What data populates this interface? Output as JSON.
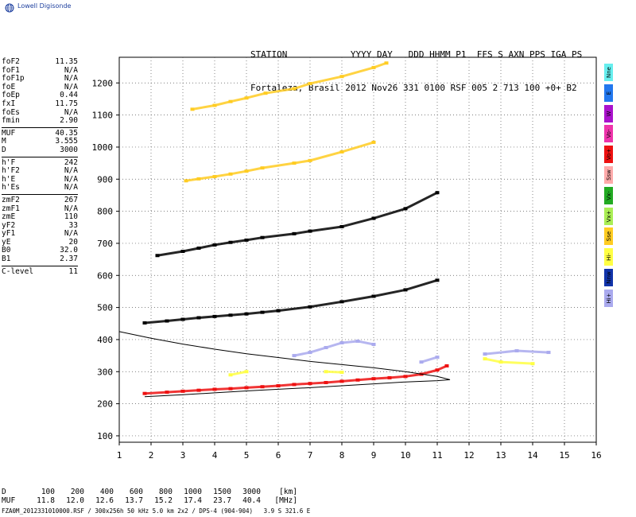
{
  "brand": "Lowell Digisonde",
  "header": {
    "line1": "STATION            YYYY DAY   DDD HHMM P1  FFS S AXN PPS IGA PS",
    "line2": "Fortaleza, Brasil 2012 Nov26 331 0100 RSF 005 2 713 100 +0+ B2"
  },
  "params": [
    [
      [
        "foF2",
        "11.35"
      ],
      [
        "foF1",
        "N/A"
      ],
      [
        "foF1p",
        "N/A"
      ],
      [
        "foE",
        "N/A"
      ],
      [
        "foEp",
        "0.44"
      ],
      [
        "fxI",
        "11.75"
      ],
      [
        "foEs",
        "N/A"
      ],
      [
        "fmin",
        "2.90"
      ]
    ],
    [
      [
        "MUF",
        "40.35"
      ],
      [
        "M",
        "3.555"
      ],
      [
        "D",
        "3000"
      ]
    ],
    [
      [
        "h'F",
        "242"
      ],
      [
        "h'F2",
        "N/A"
      ],
      [
        "h'E",
        "N/A"
      ],
      [
        "h'Es",
        "N/A"
      ]
    ],
    [
      [
        "zmF2",
        "267"
      ],
      [
        "zmF1",
        "N/A"
      ],
      [
        "zmE",
        "110"
      ],
      [
        "yF2",
        "33"
      ],
      [
        "yF1",
        "N/A"
      ],
      [
        "yE",
        "20"
      ],
      [
        "B0",
        "32.0"
      ],
      [
        "B1",
        "2.37"
      ]
    ],
    [
      [
        "C-level",
        "11"
      ]
    ]
  ],
  "legend": [
    {
      "label": "Nne",
      "color": "#66eeee"
    },
    {
      "label": "E",
      "color": "#2277ee"
    },
    {
      "label": "W",
      "color": "#aa11cc"
    },
    {
      "label": "Vo-",
      "color": "#ee33aa"
    },
    {
      "label": "Vo+",
      "color": "#ee1111"
    },
    {
      "label": "Ssw",
      "color": "#ffaaaa"
    },
    {
      "label": "Vx-",
      "color": "#22aa22"
    },
    {
      "label": "Vx+",
      "color": "#aaee55"
    },
    {
      "label": "Sse",
      "color": "#ffcc22"
    },
    {
      "label": "Hi-",
      "color": "#ffff44"
    },
    {
      "label": "Nnw",
      "color": "#1133aa"
    },
    {
      "label": "Hi+",
      "color": "#aaaaee"
    }
  ],
  "bottom_table": {
    "D_label": "D",
    "D_values": [
      "100",
      "200",
      "400",
      "600",
      "800",
      "1000",
      "1500",
      "3000"
    ],
    "D_unit": "[km]",
    "MUF_label": "MUF",
    "MUF_values": [
      "11.8",
      "12.0",
      "12.6",
      "13.7",
      "15.2",
      "17.4",
      "23.7",
      "40.4"
    ],
    "MUF_unit": "[MHz]"
  },
  "footer": "FZA0M_2012331010000.RSF / 300x256h 50 kHz 5.0 km 2x2 / DPS-4 (904-904)   3.9 S 321.6 E",
  "chart_data": {
    "type": "scatter",
    "title": "",
    "xlabel": "",
    "ylabel": "",
    "xlim": [
      1,
      16
    ],
    "ylim": [
      80,
      1280
    ],
    "x_ticks": [
      1,
      2,
      3,
      4,
      5,
      6,
      7,
      8,
      9,
      10,
      11,
      12,
      13,
      14,
      15,
      16
    ],
    "y_ticks": [
      100,
      200,
      300,
      400,
      500,
      600,
      700,
      800,
      900,
      1000,
      1100,
      1200
    ],
    "grid": true,
    "series": [
      {
        "name": "F trace 1 (o)",
        "color": "#ee1111",
        "points": [
          [
            1.8,
            232
          ],
          [
            2.5,
            236
          ],
          [
            3,
            239
          ],
          [
            3.5,
            242
          ],
          [
            4,
            245
          ],
          [
            4.5,
            247
          ],
          [
            5,
            250
          ],
          [
            5.5,
            253
          ],
          [
            6,
            256
          ],
          [
            6.5,
            260
          ],
          [
            7,
            263
          ],
          [
            7.5,
            266
          ],
          [
            8,
            270
          ],
          [
            8.5,
            274
          ],
          [
            9,
            278
          ],
          [
            9.5,
            281
          ],
          [
            10,
            285
          ],
          [
            10.5,
            292
          ],
          [
            11,
            305
          ],
          [
            11.3,
            318
          ]
        ]
      },
      {
        "name": "hop 2",
        "color": "#000000",
        "points": [
          [
            1.8,
            452
          ],
          [
            2.5,
            458
          ],
          [
            3,
            463
          ],
          [
            3.5,
            468
          ],
          [
            4,
            472
          ],
          [
            4.5,
            476
          ],
          [
            5,
            480
          ],
          [
            5.5,
            485
          ],
          [
            6,
            490
          ],
          [
            7,
            502
          ],
          [
            8,
            518
          ],
          [
            9,
            535
          ],
          [
            10,
            555
          ],
          [
            11,
            585
          ]
        ]
      },
      {
        "name": "hop 3",
        "color": "#000000",
        "points": [
          [
            2.2,
            662
          ],
          [
            3,
            675
          ],
          [
            3.5,
            685
          ],
          [
            4,
            695
          ],
          [
            4.5,
            703
          ],
          [
            5,
            710
          ],
          [
            5.5,
            718
          ],
          [
            6.5,
            730
          ],
          [
            7,
            738
          ],
          [
            8,
            752
          ],
          [
            9,
            778
          ],
          [
            10,
            808
          ],
          [
            11,
            858
          ]
        ]
      },
      {
        "name": "hop 4",
        "color": "#ffcc22",
        "points": [
          [
            3.1,
            895
          ],
          [
            3.5,
            901
          ],
          [
            4,
            908
          ],
          [
            4.5,
            916
          ],
          [
            5,
            925
          ],
          [
            5.5,
            935
          ],
          [
            6.5,
            950
          ],
          [
            7,
            958
          ],
          [
            8,
            985
          ],
          [
            9,
            1015
          ]
        ]
      },
      {
        "name": "hop 5",
        "color": "#ffcc22",
        "points": [
          [
            3.3,
            1118
          ],
          [
            4,
            1130
          ],
          [
            4.5,
            1142
          ],
          [
            5,
            1153
          ],
          [
            5.6,
            1168
          ],
          [
            6.5,
            1182
          ],
          [
            7,
            1198
          ],
          [
            8,
            1220
          ],
          [
            9,
            1248
          ],
          [
            9.4,
            1262
          ]
        ]
      },
      {
        "name": "Hi+ spread",
        "color": "#aaaaee",
        "points": [
          [
            6.5,
            350
          ],
          [
            7,
            360
          ],
          [
            7.5,
            375
          ],
          [
            8,
            390
          ],
          [
            8.5,
            395
          ],
          [
            9,
            385
          ],
          [
            10.5,
            330
          ],
          [
            11,
            345
          ],
          [
            12.5,
            355
          ],
          [
            13.5,
            365
          ],
          [
            14.5,
            360
          ]
        ]
      },
      {
        "name": "Hi- spread",
        "color": "#ffff44",
        "points": [
          [
            4.5,
            290
          ],
          [
            5,
            300
          ],
          [
            7.5,
            300
          ],
          [
            8,
            298
          ],
          [
            12.5,
            340
          ],
          [
            13,
            330
          ],
          [
            14,
            325
          ]
        ]
      }
    ],
    "profile_curve": {
      "name": "profile",
      "color": "#000000",
      "points": [
        [
          1.8,
          222
        ],
        [
          3,
          228
        ],
        [
          4,
          234
        ],
        [
          5,
          240
        ],
        [
          6,
          245
        ],
        [
          7,
          250
        ],
        [
          8,
          256
        ],
        [
          9,
          262
        ],
        [
          10,
          268
        ],
        [
          11,
          272
        ],
        [
          11.4,
          275
        ],
        [
          11,
          285
        ],
        [
          10,
          300
        ],
        [
          9,
          312
        ],
        [
          8,
          322
        ],
        [
          7,
          332
        ],
        [
          6,
          344
        ],
        [
          5,
          356
        ],
        [
          4,
          370
        ],
        [
          3,
          386
        ],
        [
          2,
          404
        ],
        [
          1,
          425
        ]
      ]
    }
  }
}
